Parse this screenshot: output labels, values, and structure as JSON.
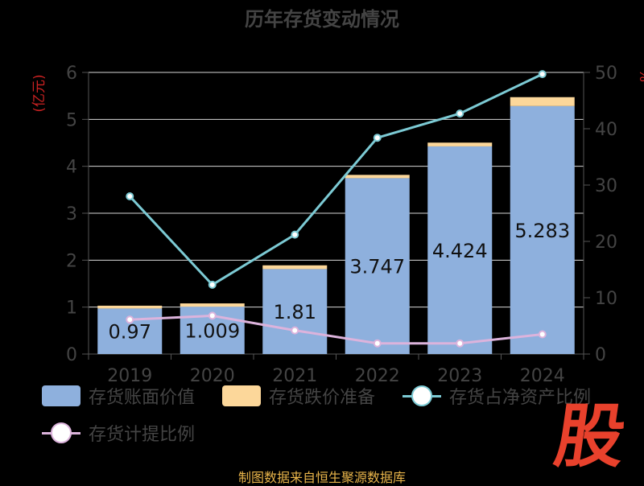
{
  "chart_data": {
    "type": "bar",
    "title": "历年存货变动情况",
    "y_left_label": "(亿元)",
    "y_right_label": "%",
    "categories": [
      "2019",
      "2020",
      "2021",
      "2022",
      "2023",
      "2024"
    ],
    "y_left_ticks": [
      "0",
      "1",
      "2",
      "3",
      "4",
      "5",
      "6"
    ],
    "y_right_ticks": [
      "0",
      "10",
      "20",
      "30",
      "40",
      "50"
    ],
    "ylim_left": [
      0,
      6
    ],
    "ylim_right": [
      0,
      50
    ],
    "stacked": true,
    "grid": true,
    "legend_position": "bottom",
    "series": [
      {
        "name": "存货账面价值",
        "kind": "bar",
        "axis": "left",
        "color": "#8eb0dd",
        "values": [
          0.97,
          1.009,
          1.81,
          3.747,
          4.424,
          5.283
        ],
        "labels": [
          "0.97",
          "1.009",
          "1.81",
          "3.747",
          "4.424",
          "5.283"
        ]
      },
      {
        "name": "存货跌价准备",
        "kind": "bar",
        "axis": "left",
        "color": "#fcd79a",
        "values": [
          0.06,
          0.07,
          0.08,
          0.07,
          0.08,
          0.19
        ]
      },
      {
        "name": "存货占净资产比例",
        "kind": "line",
        "axis": "right",
        "color": "#7ccad4",
        "values": [
          28,
          12.3,
          21.2,
          38.4,
          42.7,
          49.7
        ]
      },
      {
        "name": "存货计提比例",
        "kind": "line",
        "axis": "right",
        "color": "#dcb3dc",
        "values": [
          6.1,
          6.8,
          4.2,
          1.9,
          1.9,
          3.5
        ]
      }
    ]
  },
  "source": "制图数据来自恒生聚源数据库",
  "logo_text": "股"
}
